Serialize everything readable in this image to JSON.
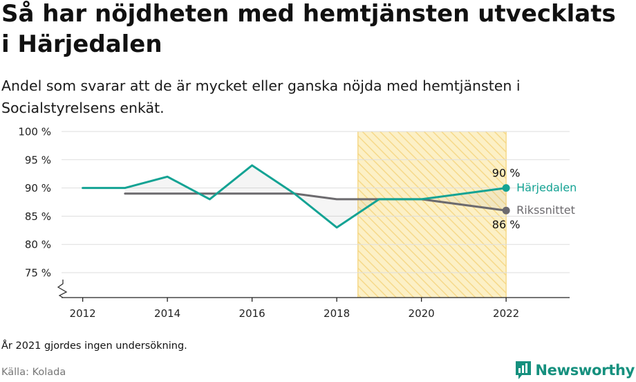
{
  "title": "Så har nöjdheten med hemtjänsten utvecklats i Härjedalen",
  "subtitle": "Andel som svarar att de är mycket eller ganska nöjda med hemtjänsten i Socialstyrelsens enkät.",
  "footnote": "År 2021 gjordes ingen undersökning.",
  "source": "Källa: Kolada",
  "brand": "Newsworthy",
  "colors": {
    "primary": "#14a394",
    "secondary": "#6c6a6e",
    "highlight_fill": "#fcf0c6",
    "highlight_hatch": "#f6d98a",
    "grid": "#dddddd",
    "brand": "#16907e"
  },
  "chart_data": {
    "type": "line",
    "title": "Så har nöjdheten med hemtjänsten utvecklats i Härjedalen",
    "subtitle": "Andel som svarar att de är mycket eller ganska nöjda med hemtjänsten i Socialstyrelsens enkät.",
    "xlabel": "",
    "ylabel": "",
    "xlim": [
      2011.5,
      2023.5
    ],
    "ylim": [
      70.5,
      100
    ],
    "y_axis_break": true,
    "grid": "horizontal",
    "x_ticks": [
      2012,
      2014,
      2016,
      2018,
      2020,
      2022
    ],
    "x_tick_labels": [
      "2012",
      "2014",
      "2016",
      "2018",
      "2020",
      "2022"
    ],
    "y_ticks": [
      75,
      80,
      85,
      90,
      95,
      100
    ],
    "y_tick_labels": [
      "75 %",
      "80 %",
      "85 %",
      "90 %",
      "95 %",
      "100 %"
    ],
    "highlight_region": {
      "x": [
        2018.5,
        2022
      ],
      "style": "hatched"
    },
    "series": [
      {
        "name": "Härjedalen",
        "color": "#14a394",
        "x": [
          2012,
          2013,
          2014,
          2015,
          2016,
          2017,
          2018,
          2019,
          2020,
          2022
        ],
        "values": [
          90,
          90,
          92,
          88,
          94,
          89,
          83,
          88,
          88,
          90
        ],
        "end_label": "90 %"
      },
      {
        "name": "Rikssnittet",
        "color": "#6c6a6e",
        "x": [
          2013,
          2014,
          2015,
          2016,
          2017,
          2018,
          2019,
          2020,
          2022
        ],
        "values": [
          89,
          89,
          89,
          89,
          89,
          88,
          88,
          88,
          86
        ],
        "end_label": "86 %"
      }
    ]
  }
}
